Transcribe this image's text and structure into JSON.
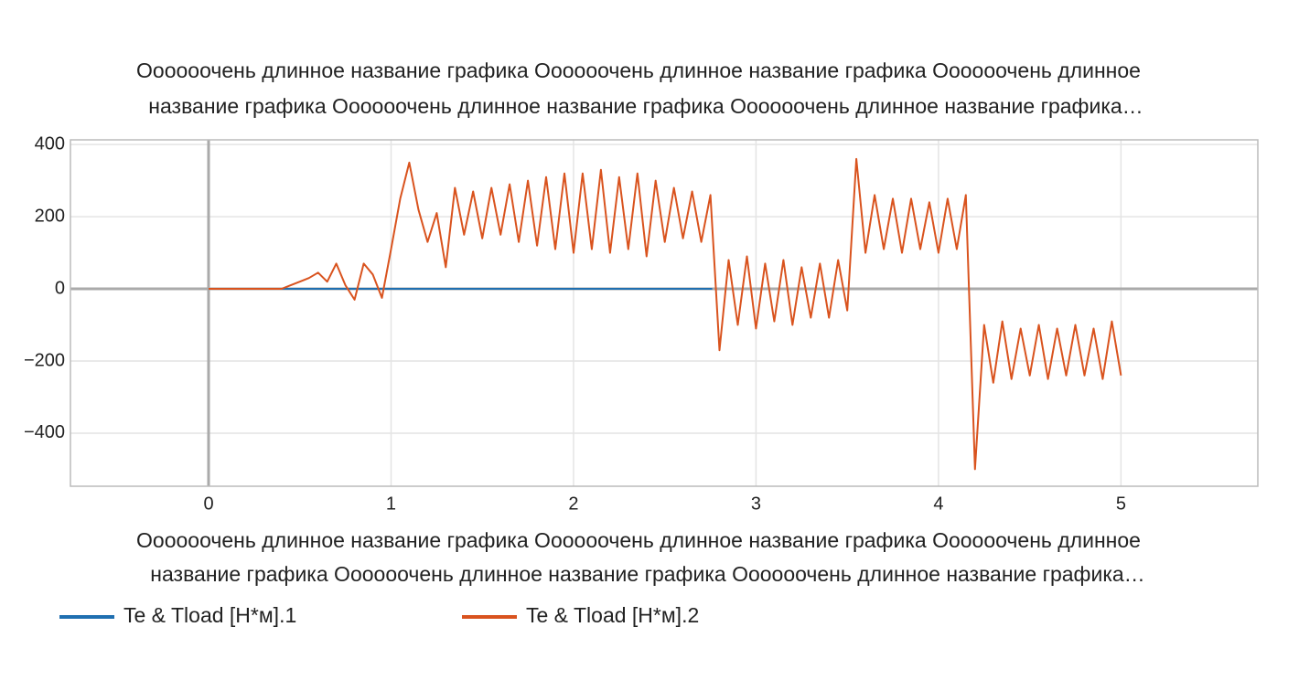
{
  "chart_data": {
    "type": "line",
    "title": [
      "Оооооочень длинное название графика Оооооочень длинное название графика Оооооочень длинное",
      "название графика Оооооочень длинное название графика Оооооочень длинное название графика…"
    ],
    "x_label": [
      "Оооооочень длинное название графика Оооооочень длинное название графика Оооооочень длинное",
      "название графика Оооооочень длинное название графика Оооооочень длинное название графика…"
    ],
    "xlim": [
      -0.757,
      5.75
    ],
    "ylim": [
      -547,
      413
    ],
    "xticks": [
      0,
      1,
      2,
      3,
      4,
      5
    ],
    "yticks": [
      {
        "value": -400,
        "label": "−400"
      },
      {
        "value": -200,
        "label": "−200"
      },
      0,
      200,
      400
    ],
    "grid": true,
    "series": [
      {
        "name": "Te & Tload [Н*м].1",
        "color": "#1f6fb0",
        "x": [
          0,
          2.76
        ],
        "values": [
          0,
          0
        ]
      },
      {
        "name": "Te & Tload [Н*м].2",
        "color": "#d9531e",
        "x": [
          0,
          0.05,
          0.1,
          0.15,
          0.2,
          0.25,
          0.3,
          0.35,
          0.4,
          0.45,
          0.5,
          0.55,
          0.6,
          0.65,
          0.7,
          0.75,
          0.8,
          0.85,
          0.9,
          0.95,
          1.0,
          1.05,
          1.1,
          1.15,
          1.2,
          1.25,
          1.3,
          1.35,
          1.4,
          1.45,
          1.5,
          1.55,
          1.6,
          1.65,
          1.7,
          1.75,
          1.8,
          1.85,
          1.9,
          1.95,
          2.0,
          2.05,
          2.1,
          2.15,
          2.2,
          2.25,
          2.3,
          2.35,
          2.4,
          2.45,
          2.5,
          2.55,
          2.6,
          2.65,
          2.7,
          2.75,
          2.8,
          2.85,
          2.9,
          2.95,
          3.0,
          3.05,
          3.1,
          3.15,
          3.2,
          3.25,
          3.3,
          3.35,
          3.4,
          3.45,
          3.5,
          3.55,
          3.6,
          3.65,
          3.7,
          3.75,
          3.8,
          3.85,
          3.9,
          3.95,
          4.0,
          4.05,
          4.1,
          4.15,
          4.2,
          4.25,
          4.3,
          4.35,
          4.4,
          4.45,
          4.5,
          4.55,
          4.6,
          4.65,
          4.7,
          4.75,
          4.8,
          4.85,
          4.9,
          4.95,
          5.0
        ],
        "values": [
          0,
          0,
          0,
          0,
          0,
          0,
          0,
          0,
          0,
          10,
          20,
          30,
          45,
          20,
          70,
          10,
          -30,
          70,
          40,
          -25,
          110,
          250,
          350,
          220,
          130,
          210,
          60,
          280,
          150,
          270,
          140,
          280,
          150,
          290,
          130,
          300,
          120,
          310,
          110,
          320,
          100,
          320,
          110,
          330,
          100,
          310,
          110,
          320,
          90,
          300,
          130,
          280,
          140,
          270,
          130,
          260,
          -170,
          80,
          -100,
          90,
          -110,
          70,
          -90,
          80,
          -100,
          60,
          -80,
          70,
          -80,
          80,
          -60,
          360,
          100,
          260,
          110,
          250,
          100,
          250,
          110,
          240,
          100,
          250,
          110,
          260,
          -500,
          -100,
          -260,
          -90,
          -250,
          -110,
          -240,
          -100,
          -250,
          -110,
          -240,
          -100,
          -240,
          -110,
          -250,
          -90,
          -240
        ]
      }
    ]
  }
}
